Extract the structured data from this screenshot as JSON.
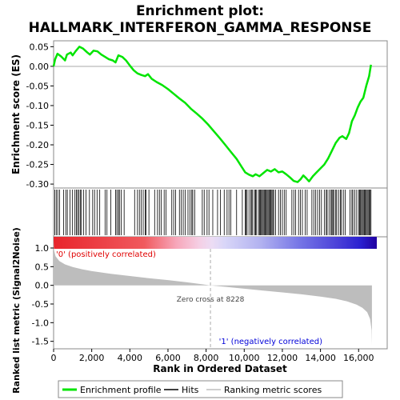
{
  "chart_data": {
    "type": "line",
    "title_line1": "Enrichment plot:",
    "title_line2": "HALLMARK_INTERFERON_GAMMA_RESPONSE",
    "ylabel_top": "Enrichment score (ES)",
    "ylabel_bottom": "Ranked list metric (Signal2Noise)",
    "xlabel": "Rank in Ordered Dataset",
    "x_ticks": [
      "0",
      "2,000",
      "4,000",
      "6,000",
      "8,000",
      "10,000",
      "12,000",
      "14,000",
      "16,000"
    ],
    "es_ticks": [
      "0.05",
      "0.00",
      "-0.05",
      "-0.10",
      "-0.15",
      "-0.20",
      "-0.25",
      "-0.30"
    ],
    "metric_ticks": [
      "1.0",
      "0.5",
      "0.0",
      "-0.5",
      "-1.0",
      "-1.5"
    ],
    "xlim": [
      0,
      17500
    ],
    "es_ylim": [
      -0.31,
      0.065
    ],
    "metric_ylim": [
      -1.7,
      1.3
    ],
    "n_genes": 16700,
    "zero_cross": 8228,
    "zero_cross_label": "Zero cross at 8228",
    "pos_label": "'0' (positively correlated)",
    "neg_label": "'1' (negatively correlated)",
    "es_curve": [
      [
        0,
        0.0
      ],
      [
        80,
        0.018
      ],
      [
        200,
        0.032
      ],
      [
        400,
        0.025
      ],
      [
        600,
        0.015
      ],
      [
        700,
        0.03
      ],
      [
        900,
        0.035
      ],
      [
        1000,
        0.028
      ],
      [
        1150,
        0.038
      ],
      [
        1350,
        0.05
      ],
      [
        1550,
        0.045
      ],
      [
        1750,
        0.036
      ],
      [
        1900,
        0.03
      ],
      [
        2100,
        0.04
      ],
      [
        2300,
        0.038
      ],
      [
        2500,
        0.03
      ],
      [
        2700,
        0.024
      ],
      [
        2900,
        0.018
      ],
      [
        3100,
        0.015
      ],
      [
        3250,
        0.01
      ],
      [
        3400,
        0.028
      ],
      [
        3600,
        0.024
      ],
      [
        3800,
        0.015
      ],
      [
        4000,
        0.002
      ],
      [
        4200,
        -0.01
      ],
      [
        4400,
        -0.018
      ],
      [
        4600,
        -0.022
      ],
      [
        4800,
        -0.025
      ],
      [
        4950,
        -0.02
      ],
      [
        5150,
        -0.032
      ],
      [
        5400,
        -0.04
      ],
      [
        5700,
        -0.048
      ],
      [
        6000,
        -0.058
      ],
      [
        6300,
        -0.07
      ],
      [
        6600,
        -0.082
      ],
      [
        6900,
        -0.093
      ],
      [
        7200,
        -0.108
      ],
      [
        7500,
        -0.12
      ],
      [
        7800,
        -0.133
      ],
      [
        8100,
        -0.148
      ],
      [
        8400,
        -0.165
      ],
      [
        8700,
        -0.182
      ],
      [
        9000,
        -0.2
      ],
      [
        9300,
        -0.218
      ],
      [
        9600,
        -0.236
      ],
      [
        9850,
        -0.255
      ],
      [
        10050,
        -0.27
      ],
      [
        10250,
        -0.276
      ],
      [
        10450,
        -0.28
      ],
      [
        10600,
        -0.275
      ],
      [
        10800,
        -0.28
      ],
      [
        11000,
        -0.272
      ],
      [
        11200,
        -0.264
      ],
      [
        11400,
        -0.268
      ],
      [
        11600,
        -0.262
      ],
      [
        11800,
        -0.27
      ],
      [
        12000,
        -0.268
      ],
      [
        12200,
        -0.275
      ],
      [
        12400,
        -0.283
      ],
      [
        12600,
        -0.292
      ],
      [
        12800,
        -0.295
      ],
      [
        12950,
        -0.288
      ],
      [
        13100,
        -0.278
      ],
      [
        13250,
        -0.285
      ],
      [
        13400,
        -0.293
      ],
      [
        13600,
        -0.28
      ],
      [
        13800,
        -0.27
      ],
      [
        14000,
        -0.26
      ],
      [
        14200,
        -0.25
      ],
      [
        14400,
        -0.235
      ],
      [
        14600,
        -0.215
      ],
      [
        14800,
        -0.195
      ],
      [
        15000,
        -0.182
      ],
      [
        15150,
        -0.178
      ],
      [
        15350,
        -0.185
      ],
      [
        15500,
        -0.17
      ],
      [
        15650,
        -0.14
      ],
      [
        15800,
        -0.125
      ],
      [
        15950,
        -0.105
      ],
      [
        16100,
        -0.09
      ],
      [
        16250,
        -0.08
      ],
      [
        16400,
        -0.05
      ],
      [
        16550,
        -0.025
      ],
      [
        16650,
        0.004
      ]
    ],
    "hits": [
      60,
      140,
      220,
      310,
      520,
      640,
      720,
      860,
      980,
      1120,
      1200,
      1260,
      1330,
      1400,
      1460,
      1580,
      1700,
      1880,
      2050,
      2150,
      2280,
      2420,
      2700,
      2800,
      3000,
      3250,
      3320,
      3400,
      3450,
      3550,
      3700,
      4250,
      4400,
      4500,
      4600,
      4700,
      4800,
      4850,
      5000,
      5300,
      5450,
      5550,
      5650,
      5800,
      5900,
      6200,
      6300,
      6400,
      6600,
      6700,
      6800,
      6900,
      7050,
      7150,
      7250,
      7300,
      7400,
      7800,
      7900,
      8050,
      8150,
      8350,
      8600,
      8750,
      8950,
      9100,
      9200,
      9300,
      9600,
      9900,
      10050,
      10100,
      10150,
      10250,
      10350,
      10400,
      10450,
      10550,
      10600,
      10650,
      10750,
      10800,
      10850,
      10900,
      10950,
      11000,
      11050,
      11100,
      11150,
      11200,
      11250,
      11300,
      11350,
      11400,
      11450,
      11500,
      11550,
      11650,
      11800,
      11900,
      12000,
      12100,
      12200,
      12500,
      12600,
      12700,
      12850,
      12950,
      13050,
      13200,
      13300,
      13550,
      13650,
      13750,
      13850,
      13950,
      14050,
      14200,
      14300,
      14350,
      14450,
      14550,
      14600,
      14650,
      14700,
      14800,
      14850,
      14950,
      15050,
      15100,
      15200,
      15300,
      15550,
      15650,
      15700,
      15800,
      15900,
      16000,
      16050,
      16100,
      16150,
      16200,
      16250,
      16300,
      16350,
      16400,
      16450,
      16500,
      16550,
      16600,
      16650
    ],
    "metric_curve": [
      [
        0,
        1.2
      ],
      [
        20,
        0.95
      ],
      [
        100,
        0.78
      ],
      [
        300,
        0.65
      ],
      [
        600,
        0.56
      ],
      [
        1000,
        0.49
      ],
      [
        1500,
        0.43
      ],
      [
        2000,
        0.38
      ],
      [
        3000,
        0.31
      ],
      [
        4000,
        0.25
      ],
      [
        5000,
        0.19
      ],
      [
        6000,
        0.14
      ],
      [
        7000,
        0.08
      ],
      [
        8228,
        0.0
      ],
      [
        9000,
        -0.04
      ],
      [
        10000,
        -0.09
      ],
      [
        11000,
        -0.14
      ],
      [
        12000,
        -0.19
      ],
      [
        13000,
        -0.24
      ],
      [
        14000,
        -0.3
      ],
      [
        14800,
        -0.36
      ],
      [
        15400,
        -0.43
      ],
      [
        15900,
        -0.52
      ],
      [
        16200,
        -0.6
      ],
      [
        16450,
        -0.72
      ],
      [
        16600,
        -0.9
      ],
      [
        16680,
        -1.2
      ],
      [
        16700,
        -1.6
      ]
    ],
    "legend": [
      {
        "label": "Enrichment profile",
        "color": "#00e400"
      },
      {
        "label": "Hits",
        "color": "#000000"
      },
      {
        "label": "Ranking metric scores",
        "color": "#bfbfbf"
      }
    ],
    "colors": {
      "es_line": "#00e400",
      "metric_fill": "#bdbdbd",
      "pos_label": "#e00000",
      "neg_label": "#0000d8",
      "heat_pos": "#e8252c",
      "heat_neg": "#2a20d0",
      "heat_end": "#2000a0"
    }
  }
}
